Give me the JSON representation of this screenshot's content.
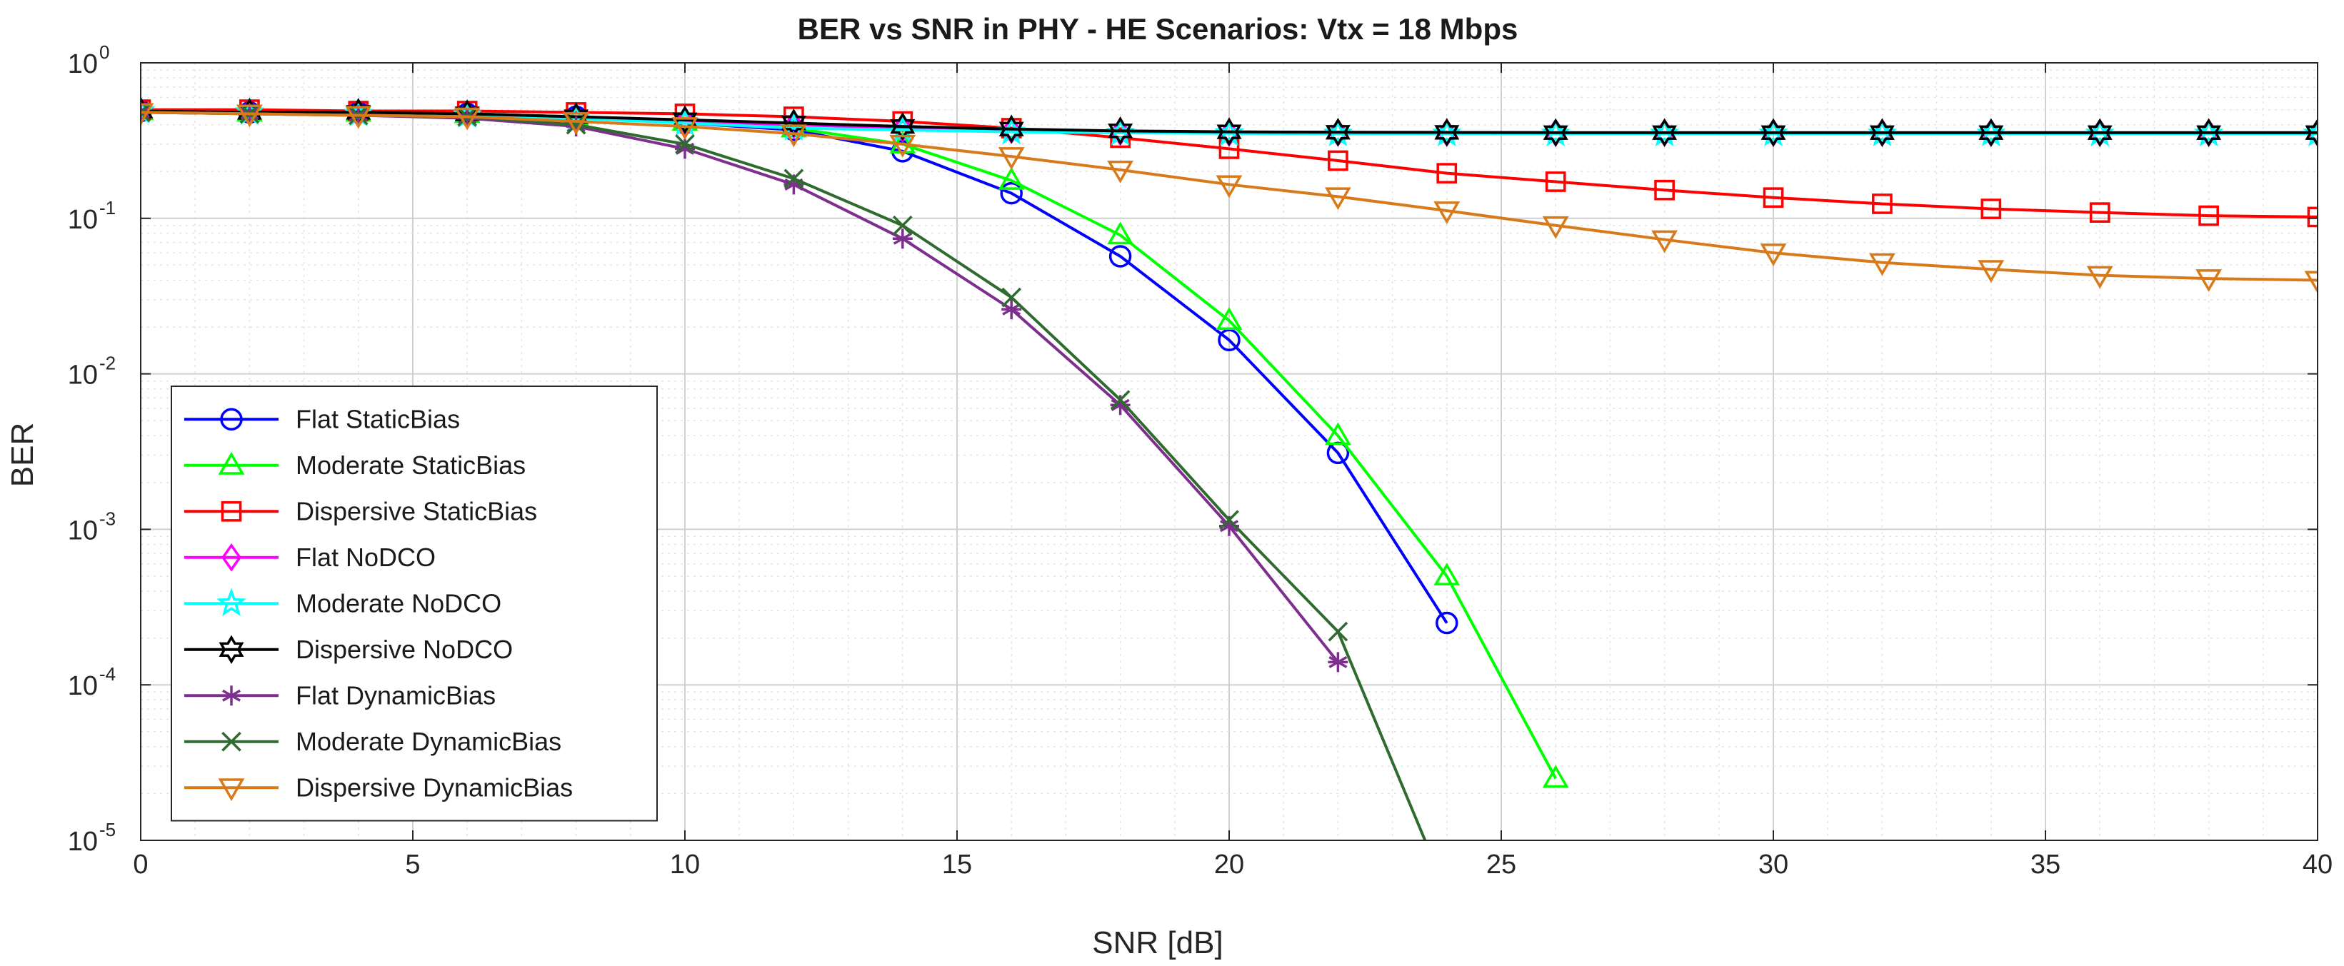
{
  "chart_data": {
    "type": "line",
    "title": "BER vs SNR in PHY - HE Scenarios: Vtx = 18 Mbps",
    "xlabel": "SNR [dB]",
    "ylabel": "BER",
    "xlim": [
      0,
      40
    ],
    "ylim": [
      1e-05,
      1
    ],
    "yscale": "log",
    "grid": true,
    "legend_position": "bottom-left",
    "x_ticks": [
      "0",
      "5",
      "10",
      "15",
      "20",
      "25",
      "30",
      "35",
      "40"
    ],
    "x_tick_values": [
      0,
      5,
      10,
      15,
      20,
      25,
      30,
      35,
      40
    ],
    "y_ticks": [
      {
        "base": "10",
        "exp": "0",
        "value": 1
      },
      {
        "base": "10",
        "exp": "-1",
        "value": 0.1
      },
      {
        "base": "10",
        "exp": "-2",
        "value": 0.01
      },
      {
        "base": "10",
        "exp": "-3",
        "value": 0.001
      },
      {
        "base": "10",
        "exp": "-4",
        "value": 0.0001
      },
      {
        "base": "10",
        "exp": "-5",
        "value": 1e-05
      }
    ],
    "series": [
      {
        "name": "Flat StaticBias",
        "color": "#0000ff",
        "marker": "circle",
        "x": [
          0,
          2,
          4,
          6,
          8,
          10,
          12,
          14,
          16,
          18,
          20,
          22,
          24
        ],
        "y": [
          0.49,
          0.48,
          0.48,
          0.47,
          0.45,
          0.41,
          0.37,
          0.27,
          0.145,
          0.057,
          0.0165,
          0.0031,
          0.00025
        ]
      },
      {
        "name": "Moderate StaticBias",
        "color": "#00ff00",
        "marker": "triangle-up",
        "x": [
          0,
          2,
          4,
          6,
          8,
          10,
          12,
          14,
          16,
          18,
          20,
          22,
          24,
          26
        ],
        "y": [
          0.49,
          0.48,
          0.48,
          0.47,
          0.45,
          0.42,
          0.38,
          0.3,
          0.175,
          0.078,
          0.022,
          0.004,
          0.0005,
          2.5e-05
        ]
      },
      {
        "name": "Dispersive StaticBias",
        "color": "#ff0000",
        "marker": "square",
        "x": [
          0,
          2,
          4,
          6,
          8,
          10,
          12,
          14,
          16,
          18,
          20,
          22,
          24,
          26,
          28,
          30,
          32,
          34,
          36,
          38,
          40
        ],
        "y": [
          0.5,
          0.5,
          0.49,
          0.49,
          0.48,
          0.47,
          0.45,
          0.42,
          0.38,
          0.33,
          0.28,
          0.235,
          0.195,
          0.172,
          0.152,
          0.136,
          0.124,
          0.115,
          0.109,
          0.104,
          0.102
        ]
      },
      {
        "name": "Flat NoDCO",
        "color": "#ff00ff",
        "marker": "diamond",
        "x": [
          0,
          2,
          4,
          6,
          8,
          10,
          12,
          14,
          16,
          18,
          20,
          22,
          24,
          26,
          28,
          30,
          32,
          34,
          36,
          38,
          40
        ],
        "y": [
          0.49,
          0.48,
          0.47,
          0.46,
          0.44,
          0.42,
          0.4,
          0.38,
          0.37,
          0.36,
          0.355,
          0.355,
          0.355,
          0.355,
          0.355,
          0.355,
          0.355,
          0.355,
          0.355,
          0.355,
          0.355
        ]
      },
      {
        "name": "Moderate NoDCO",
        "color": "#00ffff",
        "marker": "star",
        "x": [
          0,
          2,
          4,
          6,
          8,
          10,
          12,
          14,
          16,
          18,
          20,
          22,
          24,
          26,
          28,
          30,
          32,
          34,
          36,
          38,
          40
        ],
        "y": [
          0.49,
          0.48,
          0.47,
          0.46,
          0.44,
          0.41,
          0.38,
          0.37,
          0.36,
          0.355,
          0.352,
          0.35,
          0.35,
          0.35,
          0.35,
          0.35,
          0.35,
          0.35,
          0.35,
          0.35,
          0.35
        ]
      },
      {
        "name": "Dispersive NoDCO",
        "color": "#000000",
        "marker": "hexagram",
        "x": [
          0,
          2,
          4,
          6,
          8,
          10,
          12,
          14,
          16,
          18,
          20,
          22,
          24,
          26,
          28,
          30,
          32,
          34,
          36,
          38,
          40
        ],
        "y": [
          0.49,
          0.48,
          0.48,
          0.47,
          0.45,
          0.43,
          0.41,
          0.39,
          0.375,
          0.365,
          0.36,
          0.358,
          0.357,
          0.356,
          0.356,
          0.356,
          0.356,
          0.356,
          0.356,
          0.356,
          0.356
        ]
      },
      {
        "name": "Flat DynamicBias",
        "color": "#7e2f8e",
        "marker": "asterisk",
        "x": [
          0,
          2,
          4,
          6,
          8,
          10,
          12,
          14,
          16,
          18,
          20,
          22
        ],
        "y": [
          0.48,
          0.47,
          0.46,
          0.44,
          0.39,
          0.28,
          0.165,
          0.074,
          0.026,
          0.0063,
          0.00105,
          0.00014
        ]
      },
      {
        "name": "Moderate DynamicBias",
        "color": "#2f6b2f",
        "marker": "x",
        "x": [
          0,
          2,
          4,
          6,
          8,
          10,
          12,
          14,
          16,
          18,
          20,
          22,
          23.6
        ],
        "y": [
          0.48,
          0.47,
          0.46,
          0.45,
          0.4,
          0.3,
          0.18,
          0.09,
          0.031,
          0.0068,
          0.00115,
          0.00022,
          1e-05
        ]
      },
      {
        "name": "Dispersive DynamicBias",
        "color": "#d97a1a",
        "marker": "triangle-down",
        "x": [
          0,
          2,
          4,
          6,
          8,
          10,
          12,
          14,
          16,
          18,
          20,
          22,
          24,
          26,
          28,
          30,
          32,
          34,
          36,
          38,
          40
        ],
        "y": [
          0.48,
          0.47,
          0.46,
          0.45,
          0.42,
          0.39,
          0.35,
          0.3,
          0.25,
          0.205,
          0.165,
          0.138,
          0.112,
          0.09,
          0.073,
          0.06,
          0.052,
          0.047,
          0.043,
          0.041,
          0.04
        ]
      }
    ]
  }
}
